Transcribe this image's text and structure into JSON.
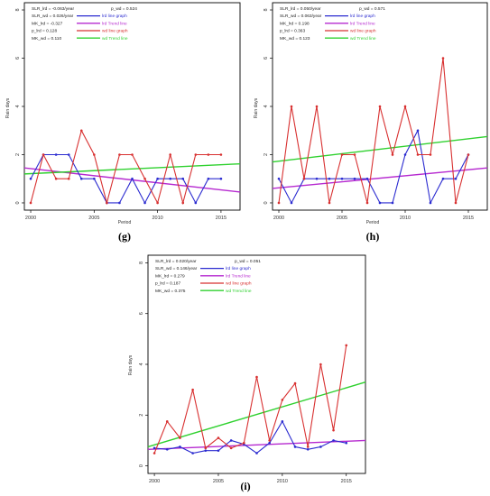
{
  "figure": {
    "panels": [
      {
        "caption": "(g)",
        "stats_left": [
          "SLR_lrd = -0.063/year",
          "SLR_wd = 0.026/year",
          "MK_lrd = -0.327",
          "p_lrd = 0.128",
          "MK_wd = 0.110"
        ],
        "stats_right": [
          "p_wd = 0.524"
        ],
        "legend": [
          {
            "label": "lrd line graph",
            "color": "#2b2bd0"
          },
          {
            "label": "lrd Trend line",
            "color": "#b62ad0"
          },
          {
            "label": "wd line graph",
            "color": "#d83030"
          },
          {
            "label": "wd Trend line",
            "color": "#2fd12f"
          }
        ],
        "xlabel": "Period",
        "ylabel": "Rain days"
      },
      {
        "caption": "(h)",
        "stats_left": [
          "SLR_lrd = 0.050/year",
          "SLR_wd = 0.063/year",
          "MK_lrd = 0.198",
          "p_lrd = 0.363",
          "MK_wd = 0.123"
        ],
        "stats_right": [
          "p_wd = 0.571"
        ],
        "legend": [
          {
            "label": "lrd line graph",
            "color": "#2b2bd0"
          },
          {
            "label": "lrd Trend line",
            "color": "#b62ad0"
          },
          {
            "label": "wd line graph",
            "color": "#d83030"
          },
          {
            "label": "wd Trend line",
            "color": "#2fd12f"
          }
        ],
        "xlabel": "Period",
        "ylabel": "Rain days"
      },
      {
        "caption": "(i)",
        "stats_left": [
          "SLR_lrd = 0.020/year",
          "SLR_wd = 0.146/year",
          "MK_lrd = 0.279",
          "p_lrd = 0.187",
          "MK_wd = 0.375"
        ],
        "stats_right": [
          "p_wd = 0.051"
        ],
        "legend": [
          {
            "label": "lrd line graph",
            "color": "#2b2bd0"
          },
          {
            "label": "lrd Trend line",
            "color": "#b62ad0"
          },
          {
            "label": "wd line graph",
            "color": "#d83030"
          },
          {
            "label": "wd Trend line",
            "color": "#2fd12f"
          }
        ],
        "xlabel": "",
        "ylabel": "Rain days"
      }
    ]
  },
  "chart_data": [
    {
      "type": "line",
      "panel": "(g)",
      "xlabel": "Period",
      "ylabel": "Rain days",
      "xlim": [
        1999.5,
        2016.5
      ],
      "ylim": [
        -0.3,
        8.3
      ],
      "x_ticks": [
        2000,
        2005,
        2010,
        2015
      ],
      "y_ticks": [
        0,
        2,
        4,
        6,
        8
      ],
      "x": [
        2000,
        2001,
        2002,
        2003,
        2004,
        2005,
        2006,
        2007,
        2008,
        2009,
        2010,
        2011,
        2012,
        2013,
        2014,
        2015
      ],
      "series": [
        {
          "name": "lrd line graph",
          "color": "#2b2bd0",
          "values": [
            1,
            2,
            2,
            2,
            1,
            1,
            0,
            0,
            1,
            0,
            1,
            1,
            1,
            0,
            1,
            1
          ]
        },
        {
          "name": "wd line graph",
          "color": "#d83030",
          "values": [
            0,
            2,
            1,
            1,
            3,
            2,
            0,
            2,
            2,
            1,
            0,
            2,
            0,
            2,
            2,
            2
          ]
        }
      ],
      "trend_lines": [
        {
          "name": "lrd Trend line",
          "color": "#b62ad0",
          "x": [
            1999.5,
            2016.5
          ],
          "y": [
            1.45,
            0.45
          ]
        },
        {
          "name": "wd Trend line",
          "color": "#2fd12f",
          "x": [
            1999.5,
            2016.5
          ],
          "y": [
            1.2,
            1.62
          ]
        }
      ]
    },
    {
      "type": "line",
      "panel": "(h)",
      "xlabel": "Period",
      "ylabel": "Rain days",
      "xlim": [
        1999.5,
        2016.5
      ],
      "ylim": [
        -0.3,
        8.3
      ],
      "x_ticks": [
        2000,
        2005,
        2010,
        2015
      ],
      "y_ticks": [
        0,
        2,
        4,
        6,
        8
      ],
      "x": [
        2000,
        2001,
        2002,
        2003,
        2004,
        2005,
        2006,
        2007,
        2008,
        2009,
        2010,
        2011,
        2012,
        2013,
        2014,
        2015
      ],
      "series": [
        {
          "name": "lrd line graph",
          "color": "#2b2bd0",
          "values": [
            1,
            0,
            1,
            1,
            1,
            1,
            1,
            1,
            0,
            0,
            2,
            3,
            0,
            1,
            1,
            2
          ]
        },
        {
          "name": "wd line graph",
          "color": "#d83030",
          "values": [
            0,
            4,
            1,
            4,
            0,
            2,
            2,
            0,
            4,
            2,
            4,
            2,
            2,
            6,
            0,
            2
          ]
        }
      ],
      "trend_lines": [
        {
          "name": "lrd Trend line",
          "color": "#b62ad0",
          "x": [
            1999.5,
            2016.5
          ],
          "y": [
            0.6,
            1.45
          ]
        },
        {
          "name": "wd Trend line",
          "color": "#2fd12f",
          "x": [
            1999.5,
            2016.5
          ],
          "y": [
            1.7,
            2.75
          ]
        }
      ]
    },
    {
      "type": "line",
      "panel": "(i)",
      "xlabel": "",
      "ylabel": "Rain days",
      "xlim": [
        1999.5,
        2016.5
      ],
      "ylim": [
        -0.3,
        8.3
      ],
      "x_ticks": [
        2000,
        2005,
        2010,
        2015
      ],
      "y_ticks": [
        0,
        2,
        4,
        6,
        8
      ],
      "x": [
        2000,
        2001,
        2002,
        2003,
        2004,
        2005,
        2006,
        2007,
        2008,
        2009,
        2010,
        2011,
        2012,
        2013,
        2014,
        2015
      ],
      "series": [
        {
          "name": "lrd line graph",
          "color": "#2b2bd0",
          "values": [
            0.7,
            0.65,
            0.75,
            0.5,
            0.6,
            0.6,
            1.0,
            0.85,
            0.5,
            0.9,
            1.75,
            0.75,
            0.65,
            0.75,
            1.0,
            0.9
          ]
        },
        {
          "name": "wd line graph",
          "color": "#d83030",
          "values": [
            0.5,
            1.75,
            1.1,
            3.0,
            0.7,
            1.1,
            0.7,
            0.9,
            3.5,
            1.0,
            2.6,
            3.25,
            0.75,
            4.0,
            1.4,
            4.75
          ]
        }
      ],
      "trend_lines": [
        {
          "name": "lrd Trend line",
          "color": "#b62ad0",
          "x": [
            1999.5,
            2016.5
          ],
          "y": [
            0.65,
            1.0
          ]
        },
        {
          "name": "wd Trend line",
          "color": "#2fd12f",
          "x": [
            1999.5,
            2016.5
          ],
          "y": [
            0.75,
            3.3
          ]
        }
      ]
    }
  ]
}
